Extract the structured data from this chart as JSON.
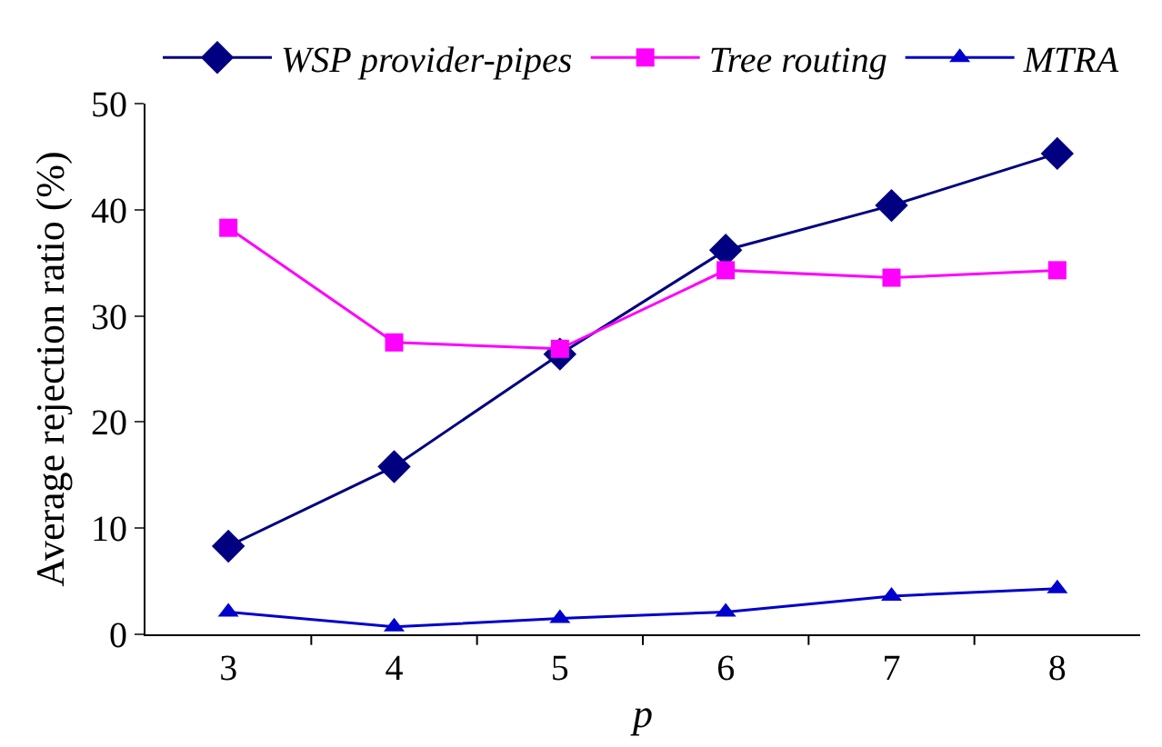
{
  "chart_data": {
    "type": "line",
    "xlabel": "p",
    "ylabel": "Average rejection ratio (%)",
    "categories": [
      "3",
      "4",
      "5",
      "6",
      "7",
      "8"
    ],
    "series": [
      {
        "name": "WSP provider-pipes",
        "color": "#000080",
        "marker": "diamond",
        "values": [
          8.3,
          15.8,
          26.4,
          36.2,
          40.4,
          45.3
        ]
      },
      {
        "name": "Tree routing",
        "color": "#ff00ff",
        "marker": "square",
        "values": [
          38.3,
          27.5,
          26.9,
          34.3,
          33.6,
          34.3
        ]
      },
      {
        "name": "MTRA",
        "color": "#0000cc",
        "marker": "triangle",
        "values": [
          2.1,
          0.7,
          1.5,
          2.1,
          3.6,
          4.3
        ]
      }
    ],
    "ylim": [
      0,
      50
    ],
    "yticks": [
      0,
      10,
      20,
      30,
      40,
      50
    ],
    "grid": false,
    "legend": "top",
    "line_style": "solid"
  }
}
